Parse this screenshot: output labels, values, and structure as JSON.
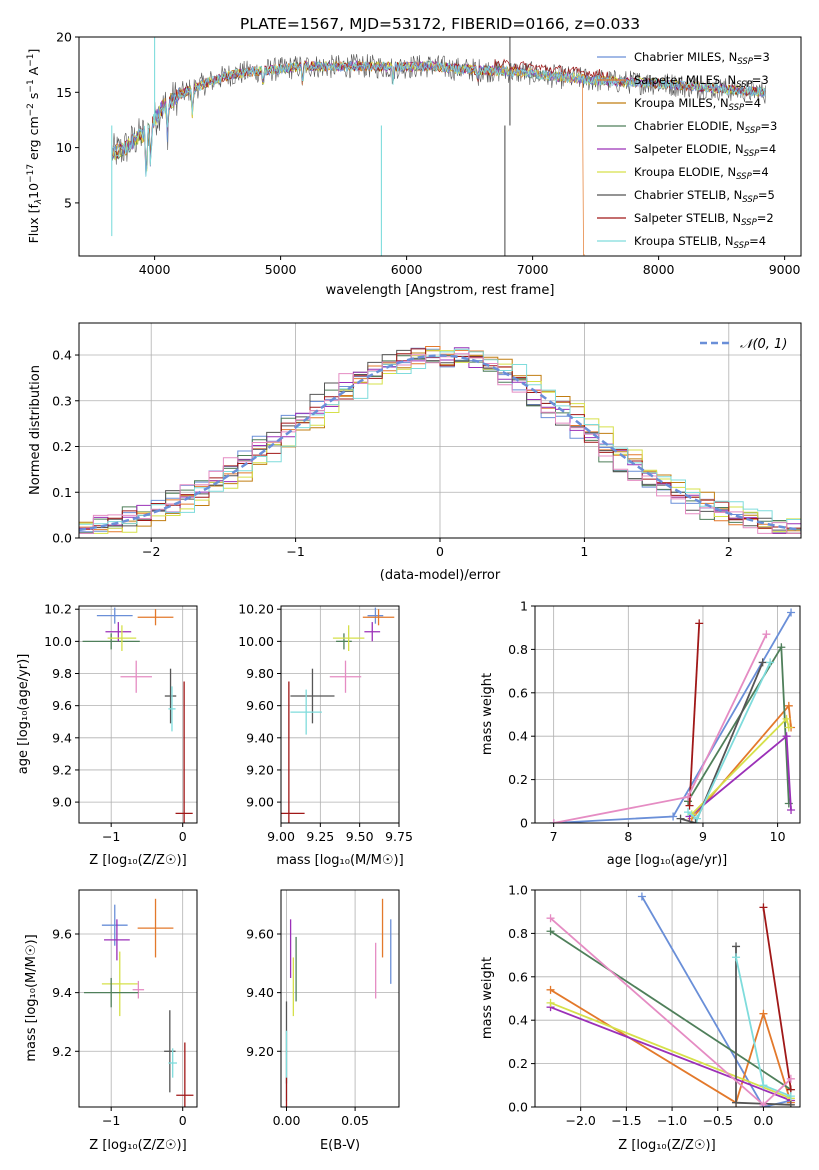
{
  "colors": [
    "#6a8fd8",
    "#e3792b",
    "#c17d11",
    "#4f7f5a",
    "#9b30b8",
    "#d6e04a",
    "#555555",
    "#a01818",
    "#7fdcdc"
  ],
  "chart_data": [
    {
      "id": "spectrum",
      "type": "line",
      "title": "PLATE=1567, MJD=53172, FIBERID=0166, z=0.033",
      "xlabel": "wavelength [Angstrom, rest frame]",
      "ylabel_parts": [
        "Flux [f",
        "λ",
        "10",
        "−17",
        " erg cm",
        "−2",
        " s",
        "−1",
        " A",
        "−1",
        "]"
      ],
      "xlim": [
        3400,
        9130
      ],
      "ylim": [
        0.2,
        20
      ],
      "xticks": [
        4000,
        5000,
        6000,
        7000,
        8000,
        9000
      ],
      "yticks": [
        5,
        10,
        15,
        20
      ],
      "grid": false,
      "legend_position": "upper-right",
      "continuum": [
        [
          3660,
          9.5
        ],
        [
          3750,
          9.8
        ],
        [
          3850,
          10.8
        ],
        [
          3950,
          11.5
        ],
        [
          4050,
          13.5
        ],
        [
          4200,
          14.8
        ],
        [
          4400,
          15.8
        ],
        [
          4600,
          16.6
        ],
        [
          4800,
          16.9
        ],
        [
          5000,
          17.1
        ],
        [
          5200,
          17.4
        ],
        [
          5400,
          17.3
        ],
        [
          5600,
          17.4
        ],
        [
          5800,
          17.3
        ],
        [
          6000,
          17.3
        ],
        [
          6200,
          17.4
        ],
        [
          6400,
          17.1
        ],
        [
          6600,
          17.0
        ],
        [
          6800,
          16.9
        ],
        [
          7000,
          16.7
        ],
        [
          7200,
          16.4
        ],
        [
          7400,
          16.2
        ],
        [
          7600,
          16.0
        ],
        [
          7800,
          15.9
        ],
        [
          8000,
          15.8
        ],
        [
          8200,
          15.6
        ],
        [
          8400,
          15.4
        ],
        [
          8600,
          15.2
        ],
        [
          8850,
          15.0
        ]
      ],
      "series": [
        {
          "name": "Chabrier MILES, N",
          "sub": "SSP",
          "suffix": "=3",
          "color_index": 0
        },
        {
          "name": "Salpeter MILES, N",
          "sub": "SSP",
          "suffix": "=3",
          "color_index": 1
        },
        {
          "name": "Kroupa MILES, N",
          "sub": "SSP",
          "suffix": "=4",
          "color_index": 2
        },
        {
          "name": "Chabrier ELODIE, N",
          "sub": "SSP",
          "suffix": "=3",
          "color_index": 3
        },
        {
          "name": "Salpeter ELODIE, N",
          "sub": "SSP",
          "suffix": "=4",
          "color_index": 4
        },
        {
          "name": "Kroupa ELODIE, N",
          "sub": "SSP",
          "suffix": "=4",
          "color_index": 5
        },
        {
          "name": "Chabrier STELIB, N",
          "sub": "SSP",
          "suffix": "=5",
          "color_index": 6
        },
        {
          "name": "Salpeter STELIB, N",
          "sub": "SSP",
          "suffix": "=2",
          "color_index": 7
        },
        {
          "name": "Kroupa STELIB, N",
          "sub": "SSP",
          "suffix": "=4",
          "color_index": 8
        }
      ]
    },
    {
      "id": "residuals",
      "type": "bar",
      "xlabel": "(data-model)/error",
      "ylabel": "Normed distribution",
      "xlim": [
        -2.5,
        2.5
      ],
      "ylim": [
        0,
        0.47
      ],
      "xticks": [
        -2,
        -1,
        0,
        1,
        2
      ],
      "yticks": [
        0.0,
        0.1,
        0.2,
        0.3,
        0.4
      ],
      "grid": true,
      "bin_width": 0.1,
      "legend_position": "upper-right",
      "legend": "𝒩(0, 1)",
      "reference_curve": "normal(0,1)"
    },
    {
      "id": "age-vs-Z",
      "type": "scatter",
      "xlabel": "Z [log₁₀(Z/Z☉)]",
      "ylabel": "age  [log₁₀(age/yr)]",
      "xlim": [
        -1.45,
        0.2
      ],
      "ylim": [
        8.87,
        10.22
      ],
      "xticks": [
        -1,
        0
      ],
      "yticks": [
        9.0,
        9.2,
        9.4,
        9.6,
        9.8,
        10.0,
        10.2
      ],
      "grid": true,
      "points": [
        {
          "c": 0,
          "x": -0.95,
          "y": 10.16,
          "xe": 0.25,
          "ye": 0.05
        },
        {
          "c": 1,
          "x": -0.38,
          "y": 10.15,
          "xe": 0.25,
          "ye": 0.05
        },
        {
          "c": 3,
          "x": -1.0,
          "y": 10.0,
          "xe": 0.4,
          "ye": 0.05
        },
        {
          "c": 4,
          "x": -0.9,
          "y": 10.06,
          "xe": 0.18,
          "ye": 0.06
        },
        {
          "c": 5,
          "x": -0.85,
          "y": 10.02,
          "xe": 0.2,
          "ye": 0.08
        },
        {
          "c": 9,
          "x": -0.65,
          "y": 9.78,
          "xe": 0.22,
          "ye": 0.1
        },
        {
          "c": 6,
          "x": -0.17,
          "y": 9.66,
          "xe": 0.08,
          "ye": 0.17
        },
        {
          "c": 8,
          "x": -0.15,
          "y": 9.58,
          "xe": 0.05,
          "ye": 0.14
        },
        {
          "c": 7,
          "x": 0.02,
          "y": 8.93,
          "xe": 0.12,
          "ye": 0.82
        }
      ]
    },
    {
      "id": "age-vs-mass",
      "type": "scatter",
      "xlabel": "mass [log₁₀(M/M☉)]",
      "xlim": [
        9.0,
        9.75
      ],
      "ylim": [
        8.87,
        10.22
      ],
      "xticks": [
        9.0,
        9.25,
        9.5,
        9.75
      ],
      "yticks": [
        9.0,
        9.2,
        9.4,
        9.6,
        9.8,
        10.0,
        10.2
      ],
      "grid": true,
      "points": [
        {
          "c": 0,
          "x": 9.6,
          "y": 10.16,
          "xe": 0.05,
          "ye": 0.05
        },
        {
          "c": 1,
          "x": 9.62,
          "y": 10.15,
          "xe": 0.1,
          "ye": 0.05
        },
        {
          "c": 3,
          "x": 9.4,
          "y": 10.0,
          "xe": 0.05,
          "ye": 0.05
        },
        {
          "c": 4,
          "x": 9.58,
          "y": 10.06,
          "xe": 0.05,
          "ye": 0.06
        },
        {
          "c": 5,
          "x": 9.43,
          "y": 10.02,
          "xe": 0.1,
          "ye": 0.08
        },
        {
          "c": 9,
          "x": 9.41,
          "y": 9.78,
          "xe": 0.1,
          "ye": 0.1
        },
        {
          "c": 6,
          "x": 9.2,
          "y": 9.66,
          "xe": 0.14,
          "ye": 0.17
        },
        {
          "c": 8,
          "x": 9.16,
          "y": 9.56,
          "xe": 0.1,
          "ye": 0.14
        },
        {
          "c": 7,
          "x": 9.05,
          "y": 8.93,
          "xe": 0.1,
          "ye": 0.82
        }
      ]
    },
    {
      "id": "weight-vs-age",
      "type": "line",
      "xlabel": "age  [log₁₀(age/yr)]",
      "ylabel": "mass weight",
      "xlim": [
        6.75,
        10.3
      ],
      "ylim": [
        0,
        1
      ],
      "xticks": [
        7,
        8,
        9,
        10
      ],
      "yticks": [
        0.0,
        0.2,
        0.4,
        0.6,
        0.8,
        1.0
      ],
      "grid": true,
      "series": [
        {
          "c": 0,
          "x": [
            7.0,
            8.6,
            10.18
          ],
          "y": [
            0.0,
            0.03,
            0.97
          ]
        },
        {
          "c": 1,
          "x": [
            8.85,
            10.15,
            10.18
          ],
          "y": [
            0.02,
            0.54,
            0.44
          ]
        },
        {
          "c": 3,
          "x": [
            8.8,
            10.05,
            10.15
          ],
          "y": [
            0.1,
            0.81,
            0.09
          ]
        },
        {
          "c": 4,
          "x": [
            8.82,
            10.12,
            10.18
          ],
          "y": [
            0.03,
            0.4,
            0.06
          ]
        },
        {
          "c": 5,
          "x": [
            8.85,
            10.12,
            10.15
          ],
          "y": [
            0.04,
            0.48,
            0.44
          ]
        },
        {
          "c": 6,
          "x": [
            8.7,
            8.9,
            9.8
          ],
          "y": [
            0.02,
            0.0,
            0.74
          ]
        },
        {
          "c": 7,
          "x": [
            8.82,
            8.95
          ],
          "y": [
            0.08,
            0.92
          ]
        },
        {
          "c": 8,
          "x": [
            8.8,
            8.92,
            9.9
          ],
          "y": [
            0.05,
            0.02,
            0.74
          ]
        },
        {
          "c": 9,
          "x": [
            7.0,
            8.8,
            9.85
          ],
          "y": [
            0.0,
            0.12,
            0.87
          ]
        }
      ]
    },
    {
      "id": "mass-vs-Z",
      "type": "scatter",
      "xlabel": "Z [log₁₀(Z/Z☉)]",
      "ylabel": "mass [log₁₀(M/M☉)]",
      "xlim": [
        -1.45,
        0.2
      ],
      "ylim": [
        9.01,
        9.75
      ],
      "xticks": [
        -1,
        0
      ],
      "yticks": [
        9.2,
        9.4,
        9.6
      ],
      "grid": true,
      "points": [
        {
          "c": 0,
          "x": -0.95,
          "y": 9.63,
          "xe": 0.18,
          "ye": 0.07
        },
        {
          "c": 1,
          "x": -0.38,
          "y": 9.62,
          "xe": 0.25,
          "ye": 0.1
        },
        {
          "c": 4,
          "x": -0.92,
          "y": 9.58,
          "xe": 0.18,
          "ye": 0.07
        },
        {
          "c": 5,
          "x": -0.88,
          "y": 9.43,
          "xe": 0.25,
          "ye": 0.11
        },
        {
          "c": 9,
          "x": -0.62,
          "y": 9.41,
          "xe": 0.08,
          "ye": 0.03
        },
        {
          "c": 3,
          "x": -1.0,
          "y": 9.4,
          "xe": 0.38,
          "ye": 0.05
        },
        {
          "c": 6,
          "x": -0.18,
          "y": 9.2,
          "xe": 0.08,
          "ye": 0.14
        },
        {
          "c": 8,
          "x": -0.14,
          "y": 9.16,
          "xe": 0.06,
          "ye": 0.05
        },
        {
          "c": 7,
          "x": 0.03,
          "y": 9.05,
          "xe": 0.12,
          "ye": 0.18
        }
      ]
    },
    {
      "id": "mass-vs-EBV",
      "type": "scatter",
      "xlabel": "E(B-V)",
      "xlim": [
        -0.004,
        0.082
      ],
      "ylim": [
        9.01,
        9.75
      ],
      "xticks": [
        0.0,
        0.05
      ],
      "yticks": [
        9.2,
        9.4,
        9.6
      ],
      "grid": true,
      "points": [
        {
          "c": 0,
          "x": 0.076,
          "y": 9.54,
          "xe": 0.0,
          "ye": 0.11
        },
        {
          "c": 1,
          "x": 0.07,
          "y": 9.62,
          "xe": 0.0,
          "ye": 0.1
        },
        {
          "c": 9,
          "x": 0.065,
          "y": 9.475,
          "xe": 0.0,
          "ye": 0.095
        },
        {
          "c": 4,
          "x": 0.003,
          "y": 9.55,
          "xe": 0.0,
          "ye": 0.1
        },
        {
          "c": 3,
          "x": 0.007,
          "y": 9.48,
          "xe": 0.0,
          "ye": 0.11
        },
        {
          "c": 5,
          "x": 0.005,
          "y": 9.42,
          "xe": 0.0,
          "ye": 0.1
        },
        {
          "c": 6,
          "x": 0.0,
          "y": 9.23,
          "xe": 0.0,
          "ye": 0.14
        },
        {
          "c": 8,
          "x": 0.0,
          "y": 9.15,
          "xe": 0.0,
          "ye": 0.12
        },
        {
          "c": 7,
          "x": 0.0,
          "y": 9.06,
          "xe": 0.0,
          "ye": 0.05
        }
      ]
    },
    {
      "id": "weight-vs-Z",
      "type": "line",
      "xlabel": "Z [log₁₀(Z/Z☉)]",
      "ylabel": "mass weight",
      "xlim": [
        -2.5,
        0.4
      ],
      "ylim": [
        0,
        1
      ],
      "xticks": [
        -2.0,
        -1.5,
        -1.0,
        -0.5,
        0.0
      ],
      "yticks": [
        0.0,
        0.2,
        0.4,
        0.6,
        0.8,
        1.0
      ],
      "grid": true,
      "series": [
        {
          "c": 0,
          "x": [
            -1.33,
            0.0,
            0.3
          ],
          "y": [
            0.97,
            0.0,
            0.03
          ]
        },
        {
          "c": 1,
          "x": [
            -2.33,
            -0.3,
            0.0,
            0.3
          ],
          "y": [
            0.54,
            0.02,
            0.43,
            0.02
          ]
        },
        {
          "c": 3,
          "x": [
            -2.33,
            0.3
          ],
          "y": [
            0.81,
            0.08
          ]
        },
        {
          "c": 4,
          "x": [
            -2.33,
            0.3
          ],
          "y": [
            0.46,
            0.03
          ]
        },
        {
          "c": 5,
          "x": [
            -2.33,
            0.3
          ],
          "y": [
            0.48,
            0.04
          ]
        },
        {
          "c": 6,
          "x": [
            -0.3,
            -0.3,
            0.3
          ],
          "y": [
            0.74,
            0.02,
            0.01
          ]
        },
        {
          "c": 7,
          "x": [
            0.0,
            0.3
          ],
          "y": [
            0.92,
            0.08
          ]
        },
        {
          "c": 8,
          "x": [
            -0.3,
            0.0,
            0.3
          ],
          "y": [
            0.69,
            0.1,
            0.05
          ]
        },
        {
          "c": 9,
          "x": [
            -2.33,
            0.0,
            0.3
          ],
          "y": [
            0.87,
            0.01,
            0.13
          ]
        }
      ]
    }
  ]
}
